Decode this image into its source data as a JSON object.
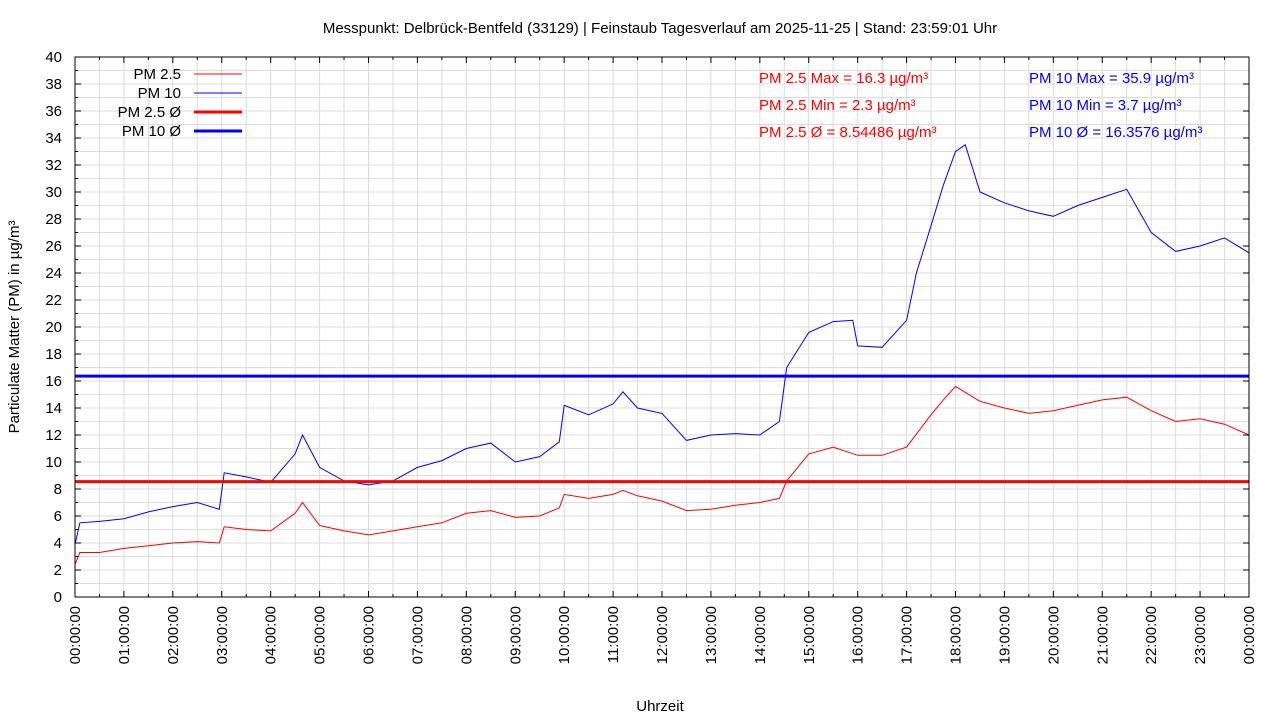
{
  "chart_data": {
    "type": "line",
    "title": "Messpunkt: Delbrück-Bentfeld (33129) | Feinstaub Tagesverlauf am 2025-11-25 | Stand: 23:59:01 Uhr",
    "xlabel": "Uhrzeit",
    "ylabel": "Particulate Matter (PM) in µg/m³",
    "ylim": [
      0,
      40
    ],
    "xlim_hours": [
      0,
      24
    ],
    "grid": true,
    "legend_position": "top-left",
    "y_ticks": [
      "0",
      "2",
      "4",
      "6",
      "8",
      "10",
      "12",
      "14",
      "16",
      "18",
      "20",
      "22",
      "24",
      "26",
      "28",
      "30",
      "32",
      "34",
      "36",
      "38",
      "40"
    ],
    "x_ticks": [
      "00:00:00",
      "01:00:00",
      "02:00:00",
      "03:00:00",
      "04:00:00",
      "05:00:00",
      "06:00:00",
      "07:00:00",
      "08:00:00",
      "09:00:00",
      "10:00:00",
      "11:00:00",
      "12:00:00",
      "13:00:00",
      "14:00:00",
      "15:00:00",
      "16:00:00",
      "17:00:00",
      "18:00:00",
      "19:00:00",
      "20:00:00",
      "21:00:00",
      "22:00:00",
      "23:00:00",
      "00:00:00"
    ],
    "legend": [
      {
        "label": "PM 2.5",
        "color": "#ff0000",
        "style": "thin"
      },
      {
        "label": "PM 10",
        "color": "#0000ff",
        "style": "thin"
      },
      {
        "label": "PM 2.5 Ø",
        "color": "#ff0000",
        "style": "thick"
      },
      {
        "label": "PM 10 Ø",
        "color": "#0000ff",
        "style": "thick"
      }
    ],
    "stats": {
      "pm25": [
        "PM 2.5 Max = 16.3 µg/m³",
        "PM 2.5 Min = 2.3 µg/m³",
        "PM 2.5 Ø = 8.54486 µg/m³"
      ],
      "pm10": [
        "PM 10 Max = 35.9 µg/m³",
        "PM 10 Min = 3.7 µg/m³",
        "PM 10 Ø = 16.3576 µg/m³"
      ]
    },
    "averages": {
      "pm25": 8.54486,
      "pm10": 16.3576
    },
    "series": [
      {
        "name": "PM 10",
        "color": "#0000ff",
        "x": [
          0,
          0.1,
          0.5,
          1,
          1.5,
          2,
          2.5,
          2.95,
          3.05,
          3.5,
          4,
          4.5,
          4.65,
          5,
          5.5,
          6,
          6.5,
          7,
          7.5,
          8,
          8.5,
          9,
          9.5,
          9.9,
          10,
          10.5,
          11,
          11.2,
          11.5,
          12,
          12.5,
          13,
          13.5,
          14,
          14.4,
          14.55,
          15,
          15.5,
          15.9,
          16,
          16.5,
          17,
          17.2,
          17.5,
          17.75,
          18,
          18.2,
          18.5,
          19,
          19.5,
          20,
          20.5,
          21,
          21.5,
          22,
          22.5,
          23,
          23.5,
          24
        ],
        "y": [
          3.9,
          5.5,
          5.6,
          5.8,
          6.3,
          6.7,
          7.0,
          6.5,
          9.2,
          8.9,
          8.5,
          10.6,
          12.0,
          9.6,
          8.6,
          8.3,
          8.6,
          9.6,
          10.1,
          11.0,
          11.4,
          10.0,
          10.4,
          11.5,
          14.2,
          13.5,
          14.3,
          15.2,
          14.0,
          13.6,
          11.6,
          12.0,
          12.1,
          12.0,
          13.0,
          17.0,
          19.6,
          20.4,
          20.5,
          18.6,
          18.5,
          20.5,
          24.0,
          27.5,
          30.5,
          33.0,
          33.5,
          30.0,
          29.2,
          28.6,
          28.2,
          29.0,
          29.6,
          30.2,
          27.0,
          25.6,
          26.0,
          26.6,
          25.5
        ]
      },
      {
        "name": "PM 2.5",
        "color": "#ff0000",
        "x": [
          0,
          0.1,
          0.5,
          1,
          1.5,
          2,
          2.5,
          2.95,
          3.05,
          3.5,
          4,
          4.5,
          4.65,
          5,
          5.5,
          6,
          6.5,
          7,
          7.5,
          8,
          8.5,
          9,
          9.5,
          9.9,
          10,
          10.5,
          11,
          11.2,
          11.5,
          12,
          12.5,
          13,
          13.5,
          14,
          14.4,
          14.55,
          15,
          15.5,
          16,
          16.5,
          17,
          17.5,
          17.75,
          18,
          18.5,
          19,
          19.5,
          20,
          20.5,
          21,
          21.5,
          22,
          22.5,
          23,
          23.5,
          24
        ],
        "y": [
          2.4,
          3.3,
          3.3,
          3.6,
          3.8,
          4.0,
          4.1,
          4.0,
          5.2,
          5.0,
          4.9,
          6.2,
          7.0,
          5.3,
          4.9,
          4.6,
          4.9,
          5.2,
          5.5,
          6.2,
          6.4,
          5.9,
          6.0,
          6.6,
          7.6,
          7.3,
          7.6,
          7.9,
          7.5,
          7.1,
          6.4,
          6.5,
          6.8,
          7.0,
          7.3,
          8.6,
          10.6,
          11.1,
          10.5,
          10.5,
          11.1,
          13.5,
          14.6,
          15.6,
          14.5,
          14.0,
          13.6,
          13.8,
          14.2,
          14.6,
          14.8,
          13.8,
          13.0,
          13.2,
          12.8,
          12.0
        ]
      }
    ]
  }
}
